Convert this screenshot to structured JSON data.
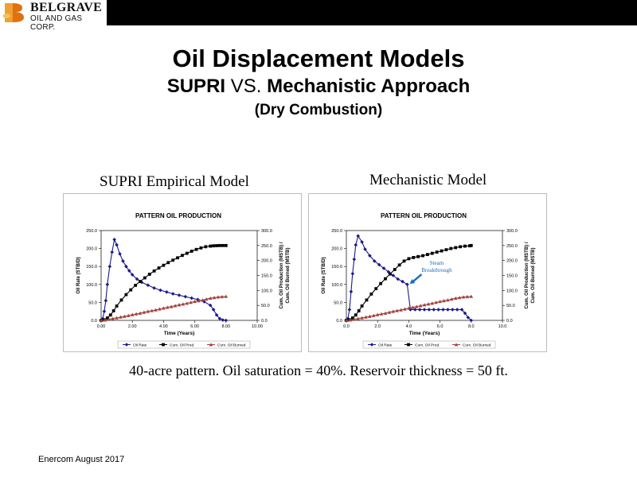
{
  "brand": {
    "name": "BELGRAVE",
    "subtitle": "OIL AND GAS CORP."
  },
  "title": "Oil Displacement Models",
  "subtitle": {
    "left": "SUPRI",
    "vs": "VS.",
    "right": "Mechanistic Approach"
  },
  "subtitle2": "(Dry Combustion)",
  "caption": "40-acre pattern. Oil saturation = 40%. Reservoir thickness = 50 ft.",
  "footer": "Enercom August 2017",
  "colors": {
    "oil_rate": "#1a1a8c",
    "cum_oil_prod": "#000000",
    "cum_oil_burned": "#a0443c",
    "annotation": "#1b6fb5"
  },
  "chart_data": [
    {
      "type": "line",
      "panel_label": "SUPRI Empirical Model",
      "title": "PATTERN OIL PRODUCTION",
      "xlabel": "Time (Years)",
      "ylabel": "Oil Rate (STB/D)",
      "y2label": [
        "Cum. Oil Production (MSTB) /",
        "Cum. Oil Burned (MSTB)"
      ],
      "xlim": [
        0,
        10
      ],
      "ylim": [
        0,
        250
      ],
      "y2lim": [
        0,
        300
      ],
      "xticks": [
        "0.00",
        "2.00",
        "4.00",
        "6.00",
        "8.00",
        "10.00"
      ],
      "yticks": [
        "0.0",
        "50.0",
        "100.0",
        "150.0",
        "200.0",
        "250.0"
      ],
      "y2ticks": [
        "0.0",
        "50.0",
        "100.0",
        "150.0",
        "200.0",
        "250.0",
        "300.0"
      ],
      "legend_position": "bottom",
      "series": [
        {
          "name": "Oil Rate",
          "axis": "left",
          "color": "#1a1a8c",
          "marker": "diamond",
          "x": [
            0,
            0.1,
            0.2,
            0.3,
            0.4,
            0.55,
            0.7,
            0.85,
            1.0,
            1.2,
            1.4,
            1.6,
            1.8,
            2.0,
            2.3,
            2.6,
            3.0,
            3.4,
            3.8,
            4.2,
            4.6,
            5.0,
            5.4,
            5.8,
            6.2,
            6.6,
            7.0,
            7.2,
            7.4,
            7.6,
            7.8,
            8.0
          ],
          "y": [
            0,
            5,
            25,
            55,
            100,
            150,
            190,
            225,
            210,
            185,
            165,
            150,
            138,
            127,
            115,
            106,
            98,
            90,
            84,
            79,
            74,
            70,
            66,
            62,
            58,
            52,
            42,
            30,
            15,
            5,
            1,
            0
          ]
        },
        {
          "name": "Cum. Oil Prod.",
          "axis": "right",
          "color": "#000000",
          "marker": "square",
          "x": [
            0,
            0.2,
            0.4,
            0.6,
            0.8,
            1.0,
            1.3,
            1.6,
            1.9,
            2.2,
            2.5,
            2.8,
            3.1,
            3.4,
            3.7,
            4.0,
            4.3,
            4.6,
            4.9,
            5.2,
            5.5,
            5.8,
            6.1,
            6.4,
            6.7,
            7.0,
            7.2,
            7.4,
            7.6,
            7.8,
            8.0
          ],
          "y": [
            0,
            2,
            8,
            18,
            32,
            48,
            68,
            86,
            102,
            117,
            130,
            142,
            154,
            165,
            175,
            184,
            193,
            201,
            209,
            217,
            224,
            231,
            237,
            242,
            246,
            248,
            249,
            249.5,
            250,
            250,
            250
          ]
        },
        {
          "name": "Cum. Oil Burned",
          "axis": "right",
          "color": "#a0443c",
          "marker": "triangle",
          "x": [
            0,
            0.25,
            0.5,
            0.75,
            1.0,
            1.25,
            1.5,
            1.75,
            2.0,
            2.25,
            2.5,
            2.75,
            3.0,
            3.25,
            3.5,
            3.75,
            4.0,
            4.25,
            4.5,
            4.75,
            5.0,
            5.25,
            5.5,
            5.75,
            6.0,
            6.25,
            6.5,
            6.75,
            7.0,
            7.25,
            7.5,
            7.75,
            8.0
          ],
          "y": [
            0,
            1.5,
            3.5,
            6,
            8.5,
            11,
            13.5,
            16,
            19,
            21.5,
            24,
            27,
            30,
            32.5,
            35,
            38,
            41,
            43.5,
            46,
            49,
            52,
            54.5,
            57,
            60,
            63,
            65.5,
            68,
            71,
            74,
            76,
            78,
            79,
            80
          ]
        }
      ]
    },
    {
      "type": "line",
      "panel_label": "Mechanistic Model",
      "title": "PATTERN OIL PRODUCTION",
      "xlabel": "Time (Years)",
      "ylabel": "Oil Rate (STB/D)",
      "y2label": [
        "Cum. Oil Production (MSTB) /",
        "Cum. Oil Burned (MSTB)"
      ],
      "xlim": [
        0,
        10
      ],
      "ylim": [
        0,
        250
      ],
      "y2lim": [
        0,
        300
      ],
      "xticks": [
        "0.0",
        "2.0",
        "4.0",
        "6.0",
        "8.0",
        "10.0"
      ],
      "yticks": [
        "0.0",
        "50.0",
        "100.0",
        "150.0",
        "200.0",
        "250.0"
      ],
      "y2ticks": [
        "0.0",
        "50.0",
        "100.0",
        "150.0",
        "200.0",
        "250.0",
        "300.0"
      ],
      "legend_position": "bottom",
      "annotation": {
        "text": [
          "Steam",
          "Breakthrough"
        ],
        "x": 3.9,
        "y": 95
      },
      "series": [
        {
          "name": "Oil Rate",
          "axis": "left",
          "color": "#1a1a8c",
          "marker": "diamond",
          "x": [
            0,
            0.1,
            0.2,
            0.3,
            0.4,
            0.5,
            0.6,
            0.75,
            1.0,
            1.2,
            1.5,
            1.8,
            2.1,
            2.4,
            2.7,
            3.0,
            3.3,
            3.6,
            3.9,
            4.1,
            4.4,
            4.7,
            5.0,
            5.3,
            5.6,
            5.9,
            6.2,
            6.5,
            6.8,
            7.1,
            7.4,
            7.6,
            7.8,
            8.0
          ],
          "y": [
            0,
            5,
            30,
            80,
            130,
            170,
            210,
            235,
            218,
            198,
            180,
            165,
            155,
            145,
            135,
            125,
            115,
            108,
            100,
            30,
            30,
            30,
            30,
            30,
            30,
            30,
            30,
            30,
            30,
            30,
            30,
            20,
            8,
            0
          ]
        },
        {
          "name": "Cum. Oil Prod.",
          "axis": "right",
          "color": "#000000",
          "marker": "square",
          "x": [
            0,
            0.2,
            0.4,
            0.6,
            0.8,
            1.0,
            1.3,
            1.6,
            1.9,
            2.2,
            2.5,
            2.8,
            3.1,
            3.4,
            3.7,
            4.0,
            4.3,
            4.6,
            4.9,
            5.2,
            5.5,
            5.8,
            6.1,
            6.4,
            6.7,
            7.0,
            7.3,
            7.6,
            7.9,
            8.0
          ],
          "y": [
            0,
            2,
            8,
            18,
            32,
            48,
            68,
            88,
            106,
            123,
            139,
            155,
            170,
            185,
            198,
            206,
            210,
            213,
            216,
            220,
            224,
            228,
            232,
            236,
            240,
            243,
            246,
            248,
            249,
            250
          ]
        },
        {
          "name": "Cum. Oil Burned",
          "axis": "right",
          "color": "#a0443c",
          "marker": "triangle",
          "x": [
            0,
            0.25,
            0.5,
            0.75,
            1.0,
            1.25,
            1.5,
            1.75,
            2.0,
            2.25,
            2.5,
            2.75,
            3.0,
            3.25,
            3.5,
            3.75,
            4.0,
            4.25,
            4.5,
            4.75,
            5.0,
            5.25,
            5.5,
            5.75,
            6.0,
            6.25,
            6.5,
            6.75,
            7.0,
            7.25,
            7.5,
            7.75,
            8.0
          ],
          "y": [
            0,
            1.5,
            3.5,
            6,
            8.5,
            11,
            13.5,
            16,
            19,
            21.5,
            24,
            27,
            30,
            32.5,
            35,
            38,
            41,
            43.5,
            46,
            49,
            52,
            54.5,
            57,
            60,
            63,
            65.5,
            68,
            71,
            74,
            76,
            78,
            79,
            80
          ]
        }
      ]
    }
  ]
}
